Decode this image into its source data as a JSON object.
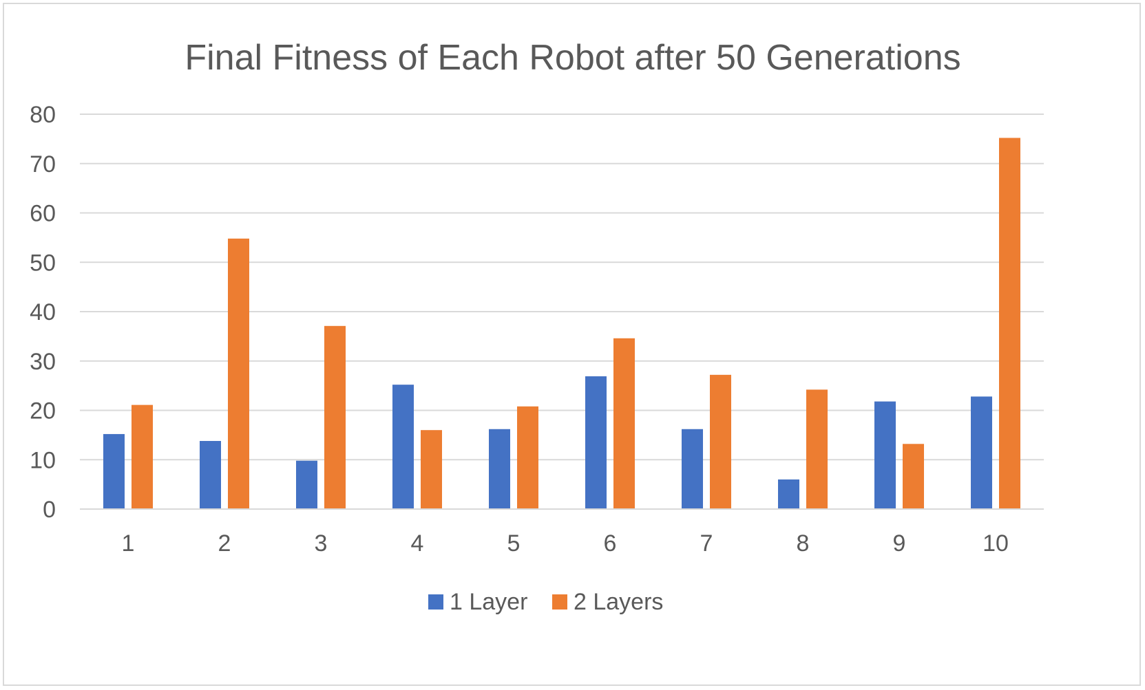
{
  "chart_data": {
    "type": "bar",
    "title": "Final Fitness of Each Robot after 50 Generations",
    "xlabel": "",
    "ylabel": "",
    "categories": [
      "1",
      "2",
      "3",
      "4",
      "5",
      "6",
      "7",
      "8",
      "9",
      "10"
    ],
    "series": [
      {
        "name": "1 Layer",
        "color": "#4472c4",
        "values": [
          15.2,
          13.8,
          9.8,
          25.2,
          16.2,
          26.9,
          16.2,
          6.0,
          21.8,
          22.8
        ]
      },
      {
        "name": "2 Layers",
        "color": "#ed7d31",
        "values": [
          21.1,
          54.8,
          37.1,
          16.0,
          20.8,
          34.6,
          27.2,
          24.2,
          13.2,
          75.2
        ]
      }
    ],
    "ylim": [
      0,
      80
    ],
    "yticks": [
      0,
      10,
      20,
      30,
      40,
      50,
      60,
      70,
      80
    ],
    "grid": true,
    "legend_position": "bottom"
  }
}
